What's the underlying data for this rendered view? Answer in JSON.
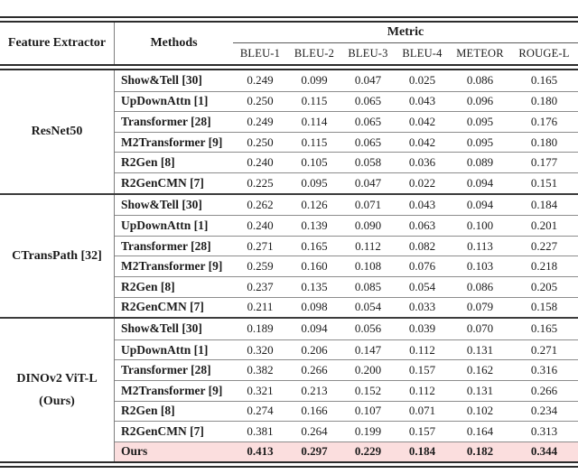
{
  "table": {
    "header": {
      "feature_extractor": "Feature Extractor",
      "methods": "Methods",
      "metric_group": "Metric",
      "metric_columns": [
        "BLEU-1",
        "BLEU-2",
        "BLEU-3",
        "BLEU-4",
        "METEOR",
        "ROUGE-L"
      ]
    },
    "sections": [
      {
        "feature_extractor": "ResNet50",
        "rows": [
          {
            "method": "Show&Tell [30]",
            "values": [
              "0.249",
              "0.099",
              "0.047",
              "0.025",
              "0.086",
              "0.165"
            ]
          },
          {
            "method": "UpDownAttn [1]",
            "values": [
              "0.250",
              "0.115",
              "0.065",
              "0.043",
              "0.096",
              "0.180"
            ]
          },
          {
            "method": "Transformer [28]",
            "values": [
              "0.249",
              "0.114",
              "0.065",
              "0.042",
              "0.095",
              "0.176"
            ]
          },
          {
            "method": "M2Transformer [9]",
            "values": [
              "0.250",
              "0.115",
              "0.065",
              "0.042",
              "0.095",
              "0.180"
            ]
          },
          {
            "method": "R2Gen [8]",
            "values": [
              "0.240",
              "0.105",
              "0.058",
              "0.036",
              "0.089",
              "0.177"
            ]
          },
          {
            "method": "R2GenCMN [7]",
            "values": [
              "0.225",
              "0.095",
              "0.047",
              "0.022",
              "0.094",
              "0.151"
            ]
          }
        ]
      },
      {
        "feature_extractor": "CTransPath [32]",
        "rows": [
          {
            "method": "Show&Tell [30]",
            "values": [
              "0.262",
              "0.126",
              "0.071",
              "0.043",
              "0.094",
              "0.184"
            ]
          },
          {
            "method": "UpDownAttn [1]",
            "values": [
              "0.240",
              "0.139",
              "0.090",
              "0.063",
              "0.100",
              "0.201"
            ]
          },
          {
            "method": "Transformer [28]",
            "values": [
              "0.271",
              "0.165",
              "0.112",
              "0.082",
              "0.113",
              "0.227"
            ]
          },
          {
            "method": "M2Transformer [9]",
            "values": [
              "0.259",
              "0.160",
              "0.108",
              "0.076",
              "0.103",
              "0.218"
            ]
          },
          {
            "method": "R2Gen [8]",
            "values": [
              "0.237",
              "0.135",
              "0.085",
              "0.054",
              "0.086",
              "0.205"
            ]
          },
          {
            "method": "R2GenCMN [7]",
            "values": [
              "0.211",
              "0.098",
              "0.054",
              "0.033",
              "0.079",
              "0.158"
            ]
          }
        ]
      },
      {
        "feature_extractor": "DINOv2 ViT-L\n(Ours)",
        "rows": [
          {
            "method": "Show&Tell [30]",
            "values": [
              "0.189",
              "0.094",
              "0.056",
              "0.039",
              "0.070",
              "0.165"
            ]
          },
          {
            "method": "UpDownAttn [1]",
            "values": [
              "0.320",
              "0.206",
              "0.147",
              "0.112",
              "0.131",
              "0.271"
            ]
          },
          {
            "method": "Transformer [28]",
            "values": [
              "0.382",
              "0.266",
              "0.200",
              "0.157",
              "0.162",
              "0.316"
            ]
          },
          {
            "method": "M2Transformer [9]",
            "values": [
              "0.321",
              "0.213",
              "0.152",
              "0.112",
              "0.131",
              "0.266"
            ]
          },
          {
            "method": "R2Gen [8]",
            "values": [
              "0.274",
              "0.166",
              "0.107",
              "0.071",
              "0.102",
              "0.234"
            ]
          },
          {
            "method": "R2GenCMN [7]",
            "values": [
              "0.381",
              "0.264",
              "0.199",
              "0.157",
              "0.164",
              "0.313"
            ]
          },
          {
            "method": "Ours",
            "values": [
              "0.413",
              "0.297",
              "0.229",
              "0.184",
              "0.182",
              "0.344"
            ],
            "highlight": true
          }
        ]
      }
    ],
    "highlight_color": "#fbdede",
    "rule_color": "#2c2c2c"
  }
}
